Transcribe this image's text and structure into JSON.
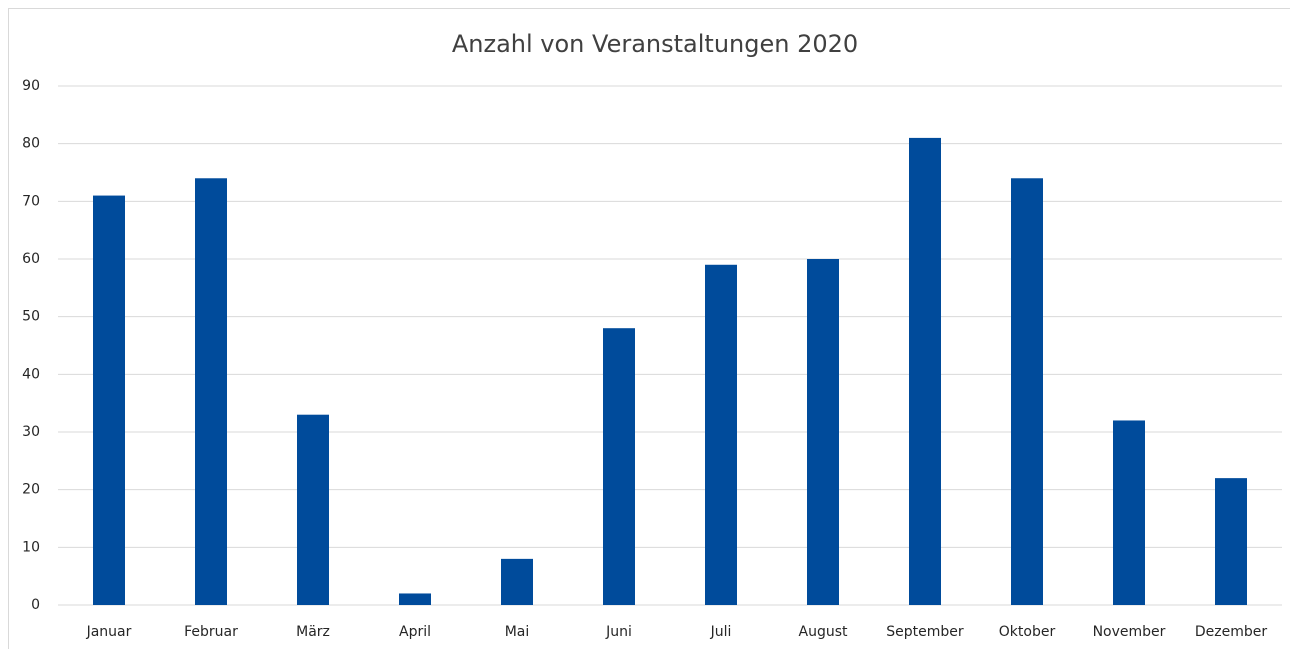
{
  "chart_data": {
    "type": "bar",
    "title": "Anzahl von Veranstaltungen 2020",
    "categories": [
      "Januar",
      "Februar",
      "März",
      "April",
      "Mai",
      "Juni",
      "Juli",
      "August",
      "September",
      "Oktober",
      "November",
      "Dezember"
    ],
    "values": [
      71,
      74,
      33,
      2,
      8,
      48,
      59,
      60,
      81,
      74,
      32,
      22
    ],
    "color": "#004b9b",
    "ylim": [
      0,
      90
    ],
    "yticks": [
      0,
      10,
      20,
      30,
      40,
      50,
      60,
      70,
      80,
      90
    ],
    "grid": true
  }
}
